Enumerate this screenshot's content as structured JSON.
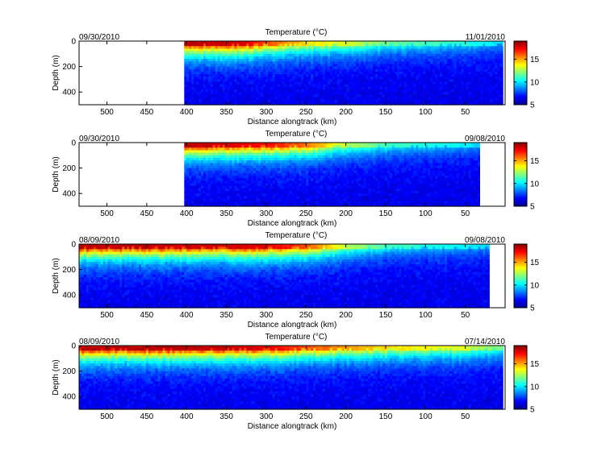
{
  "figure": {
    "colorbar_colors": [
      "#00008f",
      "#0000ff",
      "#0080ff",
      "#00ffff",
      "#80ff80",
      "#ffff00",
      "#ff8000",
      "#ff0000",
      "#800000"
    ]
  },
  "chart_data": [
    {
      "type": "heatmap",
      "title": "Temperature (°C)",
      "xlabel": "Distance alongtrack (km)",
      "ylabel": "Depth (m)",
      "start_date": "09/30/2010",
      "end_date": "11/01/2010",
      "xlim": [
        535,
        0
      ],
      "ylim": [
        0,
        500
      ],
      "x_ticks": [
        "500",
        "450",
        "400",
        "350",
        "300",
        "250",
        "200",
        "150",
        "100",
        "50"
      ],
      "y_ticks": [
        "0",
        "200",
        "400"
      ],
      "colorbar_ticks": [
        "5",
        "10",
        "15"
      ],
      "colorbar_range": [
        5,
        19
      ],
      "data_start_km": 403,
      "data_end_km": 3,
      "surface_temp_profile": [
        [
          403,
          18.5
        ],
        [
          330,
          18
        ],
        [
          300,
          16.5
        ],
        [
          250,
          14.5
        ],
        [
          200,
          13.5
        ],
        [
          150,
          12
        ],
        [
          50,
          11
        ],
        [
          3,
          10
        ]
      ]
    },
    {
      "type": "heatmap",
      "title": "Temperature (°C)",
      "xlabel": "Distance alongtrack (km)",
      "ylabel": "Depth (m)",
      "start_date": "09/30/2010",
      "end_date": "09/08/2010",
      "xlim": [
        535,
        0
      ],
      "ylim": [
        0,
        500
      ],
      "x_ticks": [
        "500",
        "450",
        "400",
        "350",
        "300",
        "250",
        "200",
        "150",
        "100",
        "50"
      ],
      "y_ticks": [
        "0",
        "200",
        "400"
      ],
      "colorbar_ticks": [
        "5",
        "10",
        "15"
      ],
      "colorbar_range": [
        5,
        19
      ],
      "data_start_km": 403,
      "data_end_km": 32,
      "surface_temp_profile": [
        [
          403,
          18.5
        ],
        [
          300,
          17.5
        ],
        [
          250,
          16
        ],
        [
          200,
          13
        ],
        [
          150,
          11.5
        ],
        [
          60,
          10.5
        ],
        [
          32,
          10
        ]
      ]
    },
    {
      "type": "heatmap",
      "title": "Temperature (°C)",
      "xlabel": "Distance alongtrack (km)",
      "ylabel": "Depth (m)",
      "start_date": "08/09/2010",
      "end_date": "09/08/2010",
      "xlim": [
        535,
        0
      ],
      "ylim": [
        0,
        500
      ],
      "x_ticks": [
        "500",
        "450",
        "400",
        "350",
        "300",
        "250",
        "200",
        "150",
        "100",
        "50"
      ],
      "y_ticks": [
        "0",
        "200",
        "400"
      ],
      "colorbar_ticks": [
        "5",
        "10",
        "15"
      ],
      "colorbar_range": [
        5,
        19
      ],
      "data_start_km": 535,
      "data_end_km": 20,
      "surface_temp_profile": [
        [
          535,
          18.5
        ],
        [
          300,
          18
        ],
        [
          250,
          16.5
        ],
        [
          200,
          13
        ],
        [
          150,
          11.5
        ],
        [
          60,
          10.5
        ],
        [
          20,
          10
        ]
      ]
    },
    {
      "type": "heatmap",
      "title": "Temperature (°C)",
      "xlabel": "Distance alongtrack (km)",
      "ylabel": "Depth (m)",
      "start_date": "08/09/2010",
      "end_date": "07/14/2010",
      "xlim": [
        535,
        0
      ],
      "ylim": [
        0,
        500
      ],
      "x_ticks": [
        "500",
        "450",
        "400",
        "350",
        "300",
        "250",
        "200",
        "150",
        "100",
        "50"
      ],
      "y_ticks": [
        "0",
        "200",
        "400"
      ],
      "colorbar_ticks": [
        "5",
        "10",
        "15"
      ],
      "colorbar_range": [
        5,
        19
      ],
      "data_start_km": 535,
      "data_end_km": 3,
      "surface_temp_profile": [
        [
          535,
          18.5
        ],
        [
          400,
          18.5
        ],
        [
          300,
          18
        ],
        [
          250,
          16.5
        ],
        [
          150,
          14.5
        ],
        [
          50,
          13.5
        ],
        [
          3,
          12
        ]
      ]
    }
  ]
}
